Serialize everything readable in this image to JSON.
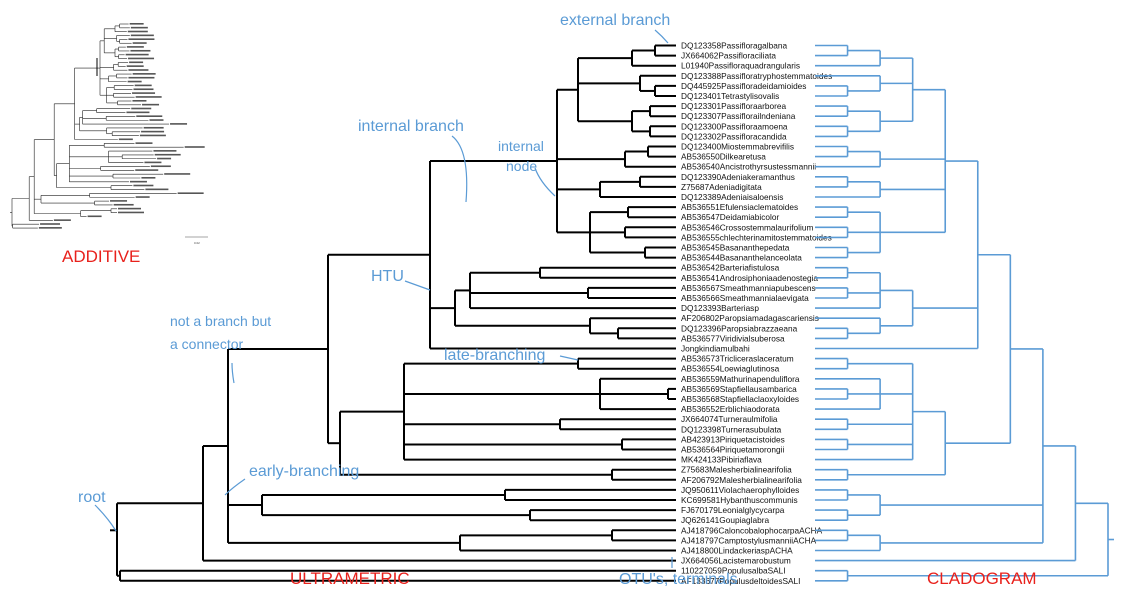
{
  "titles": {
    "additive": "ADDITIVE",
    "ultrametric": "ULTRAMETRIC",
    "cladogram": "CLADOGRAM"
  },
  "annotations": {
    "external_branch": "external branch",
    "internal_branch": "internal branch",
    "internal_node_1": "internal",
    "internal_node_2": "node",
    "htu": "HTU",
    "connector_1": "not a branch but",
    "connector_2": "a connector",
    "late_branching": "late-branching",
    "early_branching": "early-branching",
    "root": "root",
    "otus": "OTU's, terminals"
  },
  "additive_scale": "0.02",
  "colors": {
    "annotation": "#5b9bd5",
    "title": "#e8211c",
    "cladogram": "#5b9bd5",
    "tree": "#000000"
  },
  "taxa": [
    "DQ123358Passifloragalbana",
    "JX664062Passifloraciliata",
    "L01940Passifloraquadrangularis",
    "DQ123388Passifloratryphostemmatoides",
    "DQ445925Passifloradeidamioides",
    "DQ123401Tetrastylisovalis",
    "DQ123301Passifloraarborea",
    "DQ123307Passiflorailndeniana",
    "DQ123300Passifloraamoena",
    "DQ123302Passifloracandida",
    "DQ123400Miostemmabrevifilis",
    "AB536550Dilkearetusa",
    "AB536540Ancistrothyrsustessmannii",
    "DQ123390Adeniakeramanthus",
    "Z75687Adeniadigitata",
    "DQ123389Adeniaisaloensis",
    "AB536551Efulensiaclematoides",
    "AB536547Deidamiabicolor",
    "AB536546Crossostemmalaurifolium",
    "AB536555chlechterinamitostemmatoides",
    "AB536545Basananthepedata",
    "AB536544Basananthelanceolata",
    "AB536542Barteriafistulosa",
    "AB536541Androsiphoniaadenostegia",
    "AB536567Smeathmanniapubescens",
    "AB536566Smeathmannialaevigata",
    "DQ123393Barteriasp",
    "AF206802Paropsiamadagascariensis",
    "DQ123396Paropsiabrazzaeana",
    "AB536577Viridivialsuberosa",
    "Jongkindiamulbahi",
    "AB536573Tricliceraslaceratum",
    "AB536554Loewiaglutinosa",
    "AB536559Mathurinapenduliflora",
    "AB536569Stapfiellausambarica",
    "AB536568Stapfiellaclaoxyloides",
    "AB536552Erblichiaodorata",
    "JX664074Turneraulmifolia",
    "DQ123398Turnerasubulata",
    "AB423913Piriquetacistoides",
    "AB536564Piriquetamorongii",
    "MK424133Pibiriaflava",
    "Z75683Malesherbialinearifolia",
    "AF206792Malesherbialinearifolia",
    "JQ950611Violachaerophylloides",
    "KC699581Hybanthuscommunis",
    "FJ670179Leonialglycycarpa",
    "JQ626141Goupiaglabra",
    "AJ418796CaloncobalophocarpaACHA",
    "AJ418797CamptostylusmanniiACHA",
    "AJ418800LindackeriaspACHA",
    "JX664056Lacistemarobustum",
    "110227059PopulusalbaSALI",
    "AF133677PopulusdeltoidesSALI"
  ]
}
